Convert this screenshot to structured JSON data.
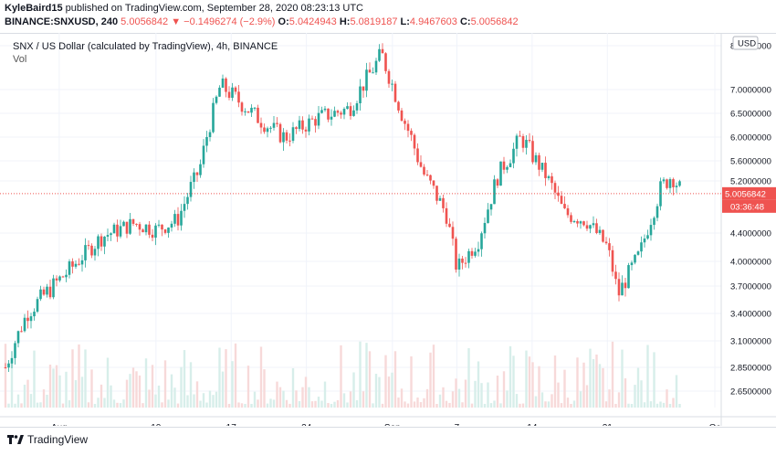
{
  "header": {
    "author": "KyleBaird15",
    "published_text": "published on TradingView.com, September 28, 2020 08:23:13 UTC",
    "symbol": "BINANCE:SNXUSD, 240",
    "last": "5.0056842",
    "change": "▼ −0.1496274 (−2.9%)",
    "o_label": "O:",
    "o_value": "5.0424943",
    "h_label": "H:",
    "h_value": "5.0819187",
    "l_label": "L:",
    "l_value": "4.9467603",
    "c_label": "C:",
    "c_value": "5.0056842"
  },
  "legend": {
    "title": "SNX / US Dollar (calculated by TradingView), 4h, BINANCE",
    "vol": "Vol"
  },
  "footer": {
    "brand": "TradingView"
  },
  "colors": {
    "up": "#26a69a",
    "down": "#ef5350",
    "vol_up": "#d7eeea",
    "vol_down": "#f7d9d9",
    "grid": "#f0f3fa"
  },
  "chart_data": {
    "type": "candlestick",
    "currency_badge": "USD",
    "price_badge": "5.0056842",
    "countdown_badge": "03:36:48",
    "y_ticks": [
      "8.0000000",
      "7.0000000",
      "6.5000000",
      "6.0000000",
      "5.6000000",
      "5.2000000",
      "4.4000000",
      "4.0000000",
      "3.7000000",
      "3.4000000",
      "3.1000000",
      "2.8500000",
      "2.6500000"
    ],
    "y_tick_values": [
      8.0,
      7.0,
      6.5,
      6.0,
      5.6,
      5.2,
      4.4,
      4.0,
      3.7,
      3.4,
      3.1,
      2.85,
      2.65
    ],
    "ylim": [
      2.55,
      8.3
    ],
    "x_labels": [
      "Aug",
      "10",
      "17",
      "24",
      "Sep",
      "7",
      "14",
      "21",
      "Oc"
    ],
    "x_label_dates": [
      "2020-08-01",
      "2020-08-10",
      "2020-08-17",
      "2020-08-24",
      "2020-09-01",
      "2020-09-07",
      "2020-09-14",
      "2020-09-21",
      "2020-10-01"
    ],
    "time_start": "2020-07-27",
    "time_end": "2020-10-01",
    "last_close": 5.0056842,
    "close_path": [
      [
        "2020-07-27",
        2.85
      ],
      [
        "2020-07-29",
        3.4
      ],
      [
        "2020-08-02",
        3.9
      ],
      [
        "2020-08-05",
        4.35
      ],
      [
        "2020-08-08",
        4.55
      ],
      [
        "2020-08-10",
        4.45
      ],
      [
        "2020-08-12",
        4.6
      ],
      [
        "2020-08-14",
        5.4
      ],
      [
        "2020-08-16",
        7.1
      ],
      [
        "2020-08-18",
        6.7
      ],
      [
        "2020-08-20",
        6.3
      ],
      [
        "2020-08-22",
        6.0
      ],
      [
        "2020-08-25",
        6.4
      ],
      [
        "2020-08-28",
        6.6
      ],
      [
        "2020-08-31",
        7.8
      ],
      [
        "2020-09-02",
        6.4
      ],
      [
        "2020-09-04",
        5.3
      ],
      [
        "2020-09-06",
        4.7
      ],
      [
        "2020-09-07",
        3.9
      ],
      [
        "2020-09-09",
        4.3
      ],
      [
        "2020-09-11",
        5.4
      ],
      [
        "2020-09-13",
        6.0
      ],
      [
        "2020-09-15",
        5.4
      ],
      [
        "2020-09-17",
        4.7
      ],
      [
        "2020-09-19",
        4.6
      ],
      [
        "2020-09-21",
        4.2
      ],
      [
        "2020-09-22",
        3.6
      ],
      [
        "2020-09-24",
        4.1
      ],
      [
        "2020-09-26",
        5.1
      ],
      [
        "2020-09-27",
        5.3
      ],
      [
        "2020-09-28",
        5.0
      ]
    ]
  }
}
